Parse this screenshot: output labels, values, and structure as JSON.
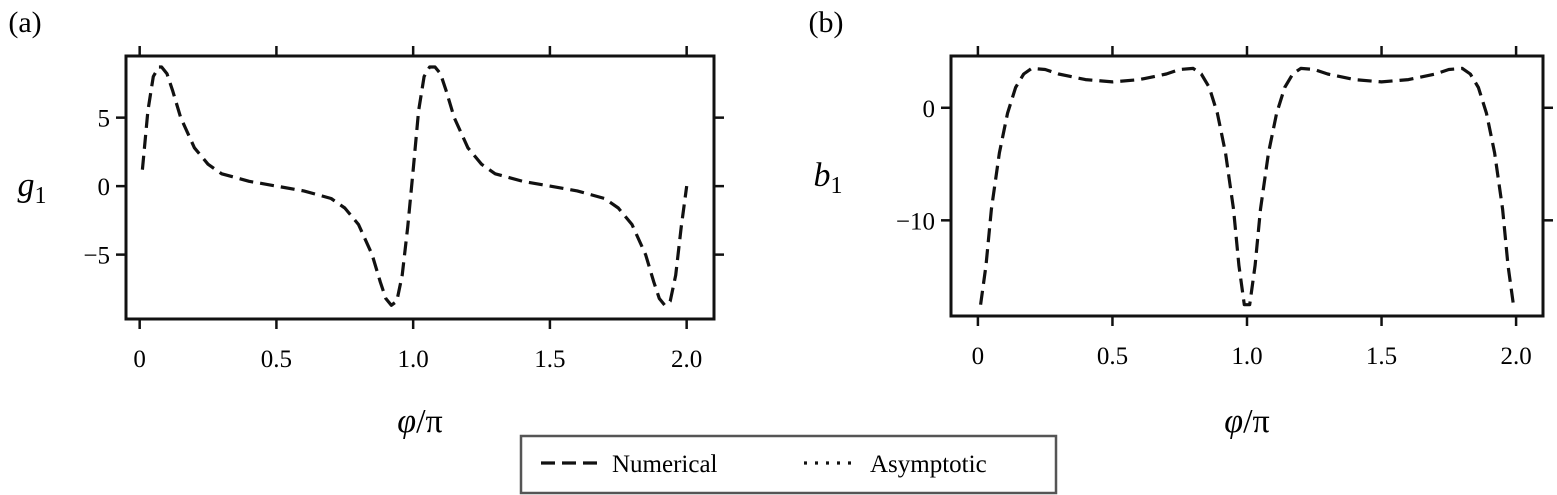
{
  "chart_data": [
    {
      "panel": "(a)",
      "type": "line",
      "xlabel": "φ/π",
      "ylabel": "g1",
      "xlim": [
        -0.05,
        2.1
      ],
      "ylim": [
        -9.7,
        9.5
      ],
      "xticks": [
        0,
        0.5,
        1.0,
        1.5,
        2.0
      ],
      "xtick_labels": [
        "0",
        "0.5",
        "1.0",
        "1.5",
        "2.0"
      ],
      "yticks": [
        5,
        0,
        -5
      ],
      "ytick_labels": [
        "5",
        "0",
        "−5"
      ],
      "grid": false,
      "series": [
        {
          "name": "Numerical",
          "style": "dashed",
          "x": [
            0.01,
            0.03,
            0.05,
            0.07,
            0.08,
            0.1,
            0.12,
            0.15,
            0.2,
            0.25,
            0.3,
            0.4,
            0.5,
            0.6,
            0.7,
            0.75,
            0.8,
            0.85,
            0.88,
            0.9,
            0.92,
            0.94,
            0.96,
            0.98,
            1.0,
            1.02,
            1.04,
            1.06,
            1.08,
            1.1,
            1.12,
            1.15,
            1.2,
            1.25,
            1.3,
            1.4,
            1.5,
            1.6,
            1.7,
            1.75,
            1.8,
            1.85,
            1.88,
            1.9,
            1.92,
            1.94,
            1.96,
            1.98,
            2.0
          ],
          "y": [
            1.2,
            5.5,
            8.0,
            8.7,
            8.7,
            8.2,
            7.0,
            5.0,
            2.8,
            1.6,
            0.9,
            0.35,
            0.0,
            -0.35,
            -0.9,
            -1.6,
            -2.8,
            -5.0,
            -7.0,
            -8.2,
            -8.7,
            -8.4,
            -6.5,
            -3.0,
            1.2,
            5.5,
            8.0,
            8.7,
            8.7,
            8.2,
            7.0,
            5.0,
            2.8,
            1.6,
            0.9,
            0.35,
            0.0,
            -0.35,
            -0.9,
            -1.6,
            -2.8,
            -5.0,
            -7.0,
            -8.2,
            -8.7,
            -8.4,
            -6.5,
            -3.0,
            0.0
          ]
        }
      ]
    },
    {
      "panel": "(b)",
      "type": "line",
      "xlabel": "φ/π",
      "ylabel": "b1",
      "xlim": [
        -0.1,
        2.1
      ],
      "ylim": [
        -18.5,
        4.6
      ],
      "xticks": [
        0,
        0.5,
        1.0,
        1.5,
        2.0
      ],
      "xtick_labels": [
        "0",
        "0.5",
        "1.0",
        "1.5",
        "2.0"
      ],
      "yticks": [
        0,
        -10
      ],
      "ytick_labels": [
        "0",
        "−10"
      ],
      "grid": false,
      "series": [
        {
          "name": "Numerical",
          "style": "dashed",
          "x": [
            0.01,
            0.03,
            0.05,
            0.08,
            0.11,
            0.14,
            0.17,
            0.2,
            0.25,
            0.3,
            0.4,
            0.5,
            0.6,
            0.7,
            0.75,
            0.8,
            0.83,
            0.86,
            0.89,
            0.92,
            0.95,
            0.97,
            0.99,
            1.0,
            1.01,
            1.03,
            1.05,
            1.08,
            1.11,
            1.14,
            1.17,
            1.2,
            1.25,
            1.3,
            1.4,
            1.5,
            1.6,
            1.7,
            1.75,
            1.8,
            1.83,
            1.86,
            1.89,
            1.92,
            1.95,
            1.97,
            1.99
          ],
          "y": [
            -17.5,
            -14.0,
            -9.0,
            -4.0,
            -0.5,
            1.8,
            3.0,
            3.5,
            3.4,
            3.0,
            2.5,
            2.3,
            2.5,
            3.0,
            3.4,
            3.5,
            3.0,
            1.8,
            -0.5,
            -4.0,
            -9.0,
            -14.0,
            -17.5,
            -17.5,
            -17.5,
            -14.0,
            -9.0,
            -4.0,
            -0.5,
            1.8,
            3.0,
            3.5,
            3.4,
            3.0,
            2.5,
            2.3,
            2.5,
            3.0,
            3.4,
            3.5,
            3.0,
            1.8,
            -0.5,
            -4.0,
            -9.0,
            -14.0,
            -17.5
          ]
        }
      ]
    }
  ],
  "legend": {
    "placement": "bottom-center",
    "items": [
      {
        "label": "Numerical",
        "style": "dashed"
      },
      {
        "label": "Asymptotic",
        "style": "dotted"
      }
    ]
  }
}
